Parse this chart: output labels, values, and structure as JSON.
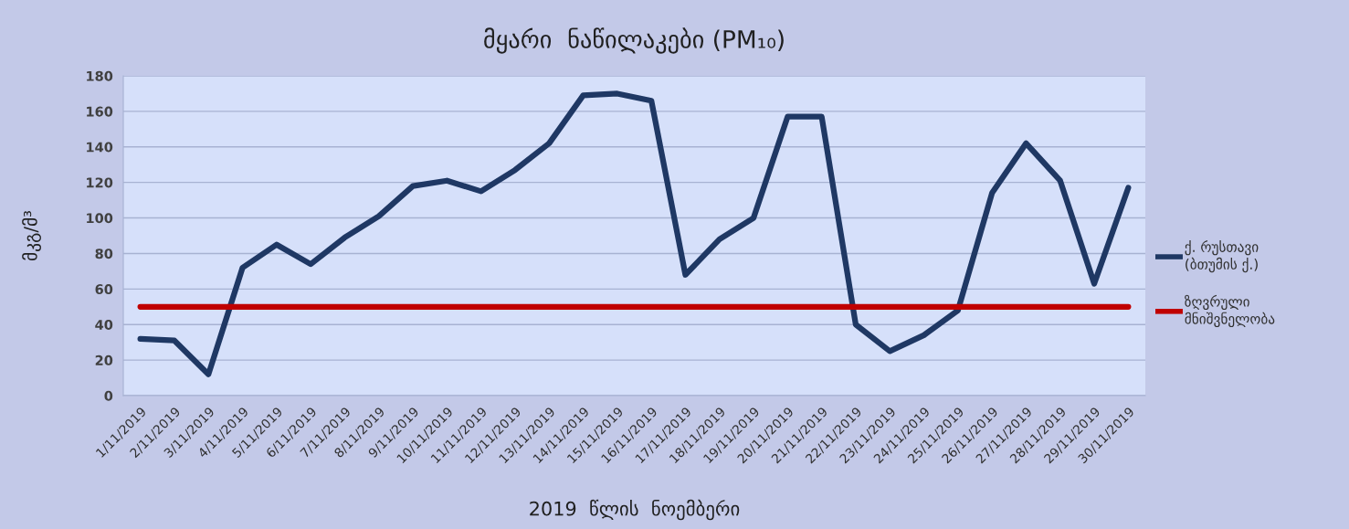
{
  "chart_data": {
    "type": "line",
    "title": "მყარი  ნაწილაკები (PM₁₀)",
    "xlabel": "2019  წლის  ნოემბერი",
    "ylabel": "მკგ/მ³",
    "categories": [
      "1/11/2019",
      "2/11/2019",
      "3/11/2019",
      "4/11/2019",
      "5/11/2019",
      "6/11/2019",
      "7/11/2019",
      "8/11/2019",
      "9/11/2019",
      "10/11/2019",
      "11/11/2019",
      "12/11/2019",
      "13/11/2019",
      "14/11/2019",
      "15/11/2019",
      "16/11/2019",
      "17/11/2019",
      "18/11/2019",
      "19/11/2019",
      "20/11/2019",
      "21/11/2019",
      "22/11/2019",
      "23/11/2019",
      "24/11/2019",
      "25/11/2019",
      "26/11/2019",
      "27/11/2019",
      "28/11/2019",
      "29/11/2019",
      "30/11/2019"
    ],
    "series": [
      {
        "name": "ქ. რუსთავი\n(ბთუმის ქ.)",
        "color": "#1f3864",
        "values": [
          32,
          31,
          12,
          72,
          85,
          74,
          89,
          101,
          118,
          121,
          115,
          127,
          142,
          169,
          170,
          166,
          68,
          88,
          100,
          157,
          157,
          40,
          25,
          34,
          48,
          114,
          142,
          121,
          63,
          117
        ]
      },
      {
        "name": "ზღვრული\nმნიშვნელობა",
        "color": "#c00000",
        "values": [
          50,
          50,
          50,
          50,
          50,
          50,
          50,
          50,
          50,
          50,
          50,
          50,
          50,
          50,
          50,
          50,
          50,
          50,
          50,
          50,
          50,
          50,
          50,
          50,
          50,
          50,
          50,
          50,
          50,
          50
        ]
      }
    ],
    "ylim": [
      0,
      180
    ],
    "yticks": [
      0,
      20,
      40,
      60,
      80,
      100,
      120,
      140,
      160,
      180
    ],
    "grid": "y",
    "legend": "right",
    "marker": "none",
    "line_style": "solid"
  }
}
